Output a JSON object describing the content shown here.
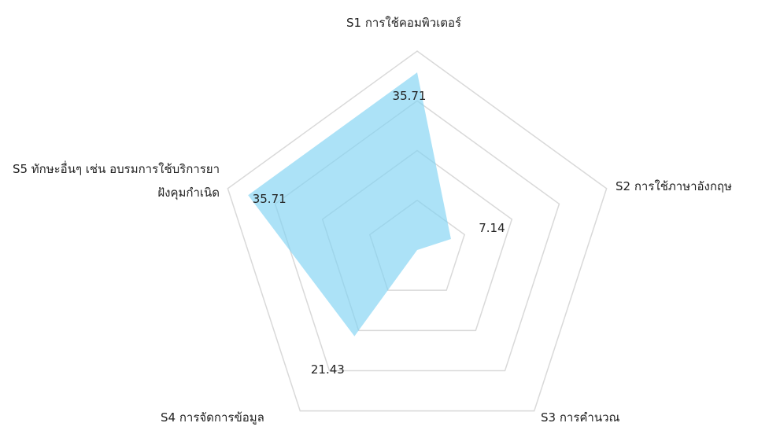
{
  "chart_data": {
    "type": "radar",
    "categories": [
      "S1 การใช้คอมพิวเตอร์",
      "S2 การใช้ภาษาอังกฤษ",
      "S3 การคำนวณ",
      "S4 การจัดการข้อมูล",
      "S5 ทักษะอื่นๆ เช่น อบรมการใช้บริการยาฝังคุมกำเนิด"
    ],
    "values": [
      35.71,
      7.14,
      0,
      21.43,
      35.71
    ],
    "value_labels": [
      "35.71",
      "7.14",
      null,
      "21.43",
      "35.71"
    ],
    "color": "#7fd3f3",
    "ylim": [
      0,
      40
    ],
    "yticks": [
      10,
      20,
      30,
      40
    ],
    "grid": true
  }
}
